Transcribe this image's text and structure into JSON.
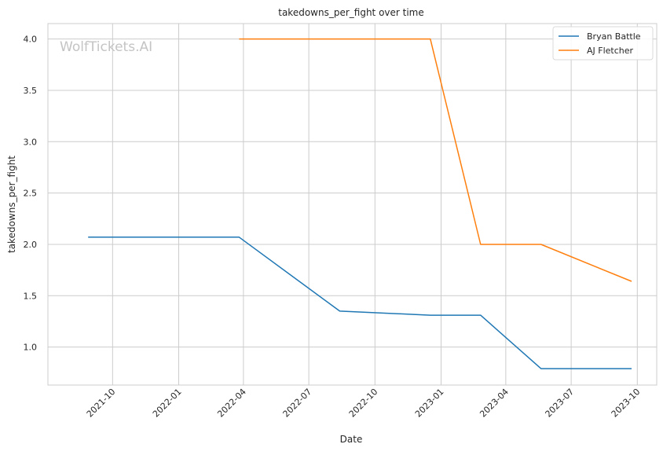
{
  "chart_data": {
    "type": "line",
    "title": "takedowns_per_fight over time",
    "xlabel": "Date",
    "ylabel": "takedowns_per_fight",
    "watermark": "WolfTickets.AI",
    "xlim": [
      "2021-07-03",
      "2023-10-28"
    ],
    "ylim": [
      0.63,
      4.15
    ],
    "x_ticks": [
      "2021-10",
      "2022-01",
      "2022-04",
      "2022-07",
      "2022-10",
      "2023-01",
      "2023-04",
      "2023-07",
      "2023-10"
    ],
    "y_ticks": [
      1.0,
      1.5,
      2.0,
      2.5,
      3.0,
      3.5,
      4.0
    ],
    "y_tick_labels": [
      "1.0",
      "1.5",
      "2.0",
      "2.5",
      "3.0",
      "3.5",
      "4.0"
    ],
    "grid": true,
    "legend_position": "top-right",
    "series": [
      {
        "name": "Bryan Battle",
        "color": "#1f77b4",
        "x": [
          "2021-08-28",
          "2022-03-26",
          "2022-08-13",
          "2022-12-17",
          "2023-02-25",
          "2023-05-20",
          "2023-09-23"
        ],
        "y": [
          2.07,
          2.07,
          1.35,
          1.31,
          1.31,
          0.79,
          0.79
        ]
      },
      {
        "name": "AJ Fletcher",
        "color": "#ff7f0e",
        "x": [
          "2022-03-26",
          "2022-12-17",
          "2023-02-25",
          "2023-05-20",
          "2023-09-23"
        ],
        "y": [
          4.0,
          4.0,
          2.0,
          2.0,
          1.64
        ]
      }
    ]
  }
}
